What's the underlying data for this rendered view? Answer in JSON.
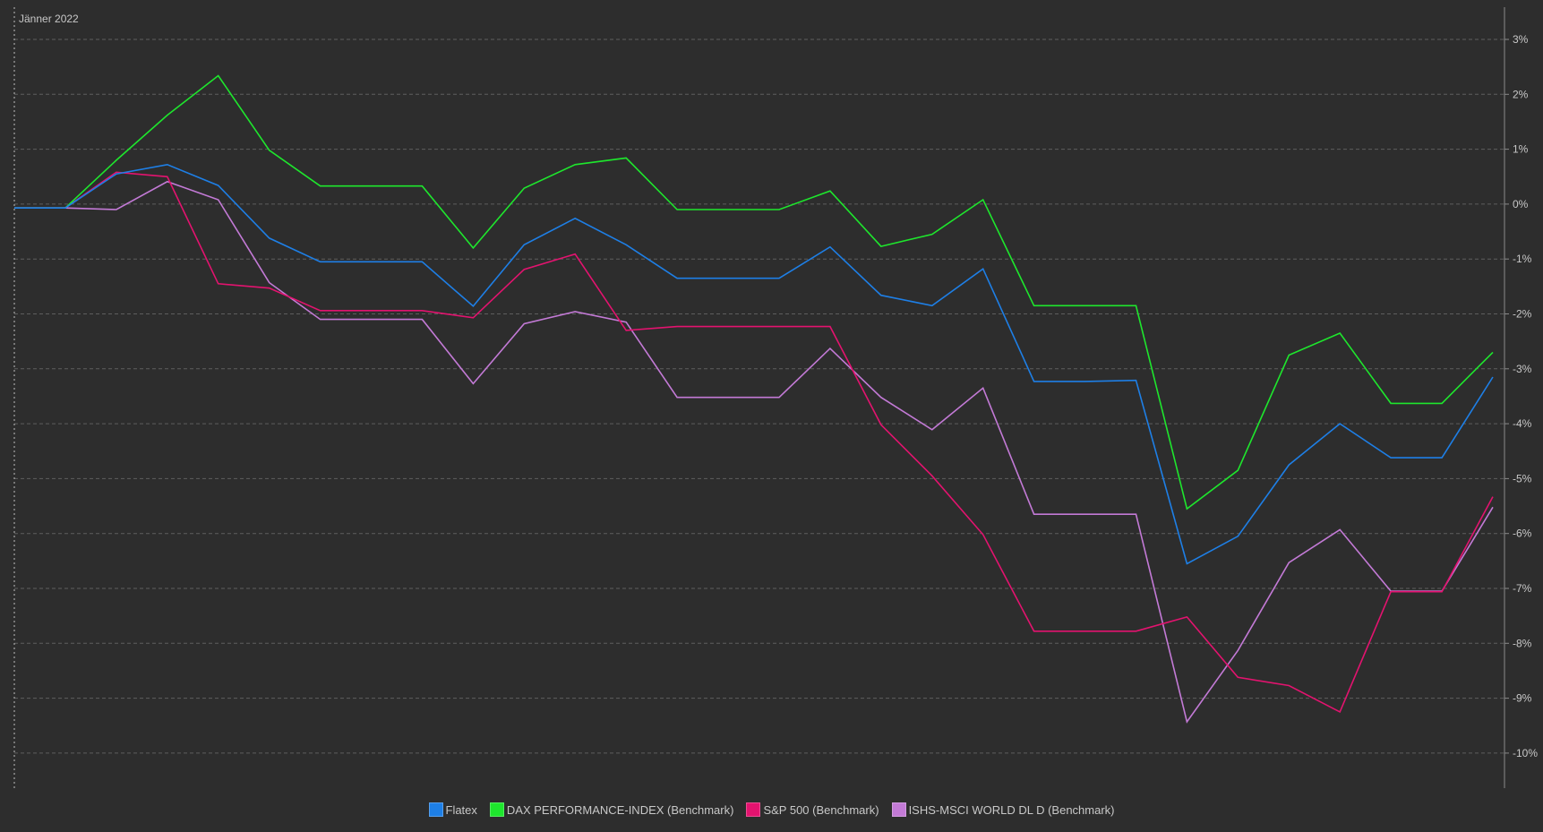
{
  "period_label": "Jänner 2022",
  "chart_data": {
    "type": "line",
    "x": [
      1,
      2,
      3,
      4,
      5,
      6,
      7,
      8,
      9,
      10,
      11,
      12,
      13,
      14,
      15,
      16,
      17,
      18,
      19,
      20,
      21,
      22,
      23,
      24,
      25,
      26,
      27,
      28,
      29,
      30
    ],
    "y_ticks": [
      "3%",
      "2%",
      "1%",
      "0%",
      "-1%",
      "-2%",
      "-3%",
      "-4%",
      "-5%",
      "-6%",
      "-7%",
      "-8%",
      "-9%",
      "-10%"
    ],
    "ylim": [
      -10.6,
      3.6
    ],
    "grid": true,
    "legend_position": "bottom-center",
    "series": [
      {
        "name": "Flatex",
        "color": "#1e7fe6",
        "values": [
          -0.07,
          -0.07,
          0.55,
          0.72,
          0.34,
          -0.62,
          -1.05,
          -1.05,
          -1.05,
          -1.86,
          -0.74,
          -0.26,
          -0.74,
          -1.35,
          -1.35,
          -1.35,
          -0.78,
          -1.66,
          -1.85,
          -1.18,
          -3.23,
          -3.23,
          -3.21,
          -6.55,
          -6.05,
          -4.75,
          -4.0,
          -4.62,
          -4.62,
          -3.15
        ]
      },
      {
        "name": "DAX PERFORMANCE-INDEX (Benchmark)",
        "color": "#1ee62d",
        "values": [
          -0.07,
          -0.07,
          0.8,
          1.62,
          2.34,
          0.98,
          0.33,
          0.33,
          0.33,
          -0.8,
          0.29,
          0.72,
          0.84,
          -0.1,
          -0.1,
          -0.1,
          0.24,
          -0.77,
          -0.55,
          0.08,
          -1.85,
          -1.85,
          -1.85,
          -5.55,
          -4.85,
          -2.75,
          -2.35,
          -3.63,
          -3.63,
          -2.7
        ]
      },
      {
        "name": "S&P 500 (Benchmark)",
        "color": "#e3136f",
        "values": [
          -0.07,
          -0.07,
          0.58,
          0.5,
          -1.45,
          -1.53,
          -1.94,
          -1.94,
          -1.94,
          -2.07,
          -1.19,
          -0.91,
          -2.3,
          -2.23,
          -2.23,
          -2.23,
          -2.23,
          -4.02,
          -4.95,
          -6.02,
          -7.78,
          -7.78,
          -7.78,
          -7.52,
          -8.62,
          -8.77,
          -9.25,
          -7.06,
          -7.06,
          -5.33
        ]
      },
      {
        "name": "ISHS-MSCI WORLD DL D (Benchmark)",
        "color": "#c37ad6",
        "values": [
          -0.07,
          -0.07,
          -0.1,
          0.41,
          0.08,
          -1.43,
          -2.1,
          -2.1,
          -2.1,
          -3.27,
          -2.18,
          -1.96,
          -2.15,
          -3.52,
          -3.52,
          -3.52,
          -2.63,
          -3.52,
          -4.11,
          -3.35,
          -5.65,
          -5.65,
          -5.65,
          -9.43,
          -8.13,
          -6.53,
          -5.93,
          -7.05,
          -7.05,
          -5.52
        ]
      }
    ]
  }
}
